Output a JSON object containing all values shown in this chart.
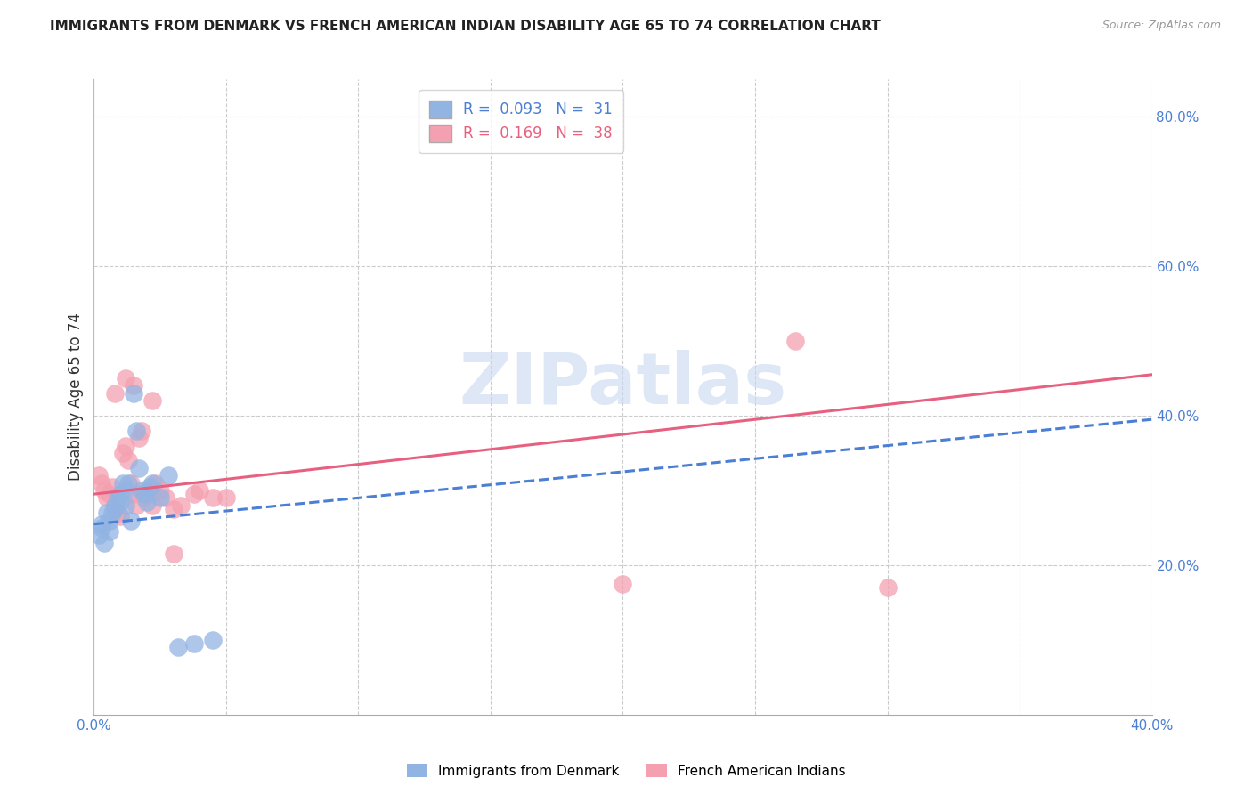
{
  "title": "IMMIGRANTS FROM DENMARK VS FRENCH AMERICAN INDIAN DISABILITY AGE 65 TO 74 CORRELATION CHART",
  "source": "Source: ZipAtlas.com",
  "ylabel": "Disability Age 65 to 74",
  "xlim": [
    0.0,
    0.4
  ],
  "ylim": [
    0.0,
    0.85
  ],
  "xticks": [
    0.0,
    0.05,
    0.1,
    0.15,
    0.2,
    0.25,
    0.3,
    0.35,
    0.4
  ],
  "yticks_right": [
    0.2,
    0.4,
    0.6,
    0.8
  ],
  "ytick_labels_right": [
    "20.0%",
    "40.0%",
    "60.0%",
    "80.0%"
  ],
  "xtick_labels": [
    "0.0%",
    "",
    "",
    "",
    "",
    "",
    "",
    "",
    "40.0%"
  ],
  "legend_r_blue": "0.093",
  "legend_n_blue": "31",
  "legend_r_pink": "0.169",
  "legend_n_pink": "38",
  "blue_color": "#92b4e3",
  "pink_color": "#f4a0b0",
  "blue_line_color": "#4a7fd4",
  "pink_line_color": "#e86080",
  "watermark": "ZIPatlas",
  "watermark_color": "#c8d8f0",
  "blue_scatter_x": [
    0.002,
    0.003,
    0.003,
    0.004,
    0.005,
    0.006,
    0.006,
    0.007,
    0.008,
    0.008,
    0.009,
    0.01,
    0.01,
    0.011,
    0.012,
    0.012,
    0.013,
    0.014,
    0.015,
    0.016,
    0.017,
    0.018,
    0.019,
    0.02,
    0.021,
    0.022,
    0.025,
    0.028,
    0.032,
    0.038,
    0.045
  ],
  "blue_scatter_y": [
    0.24,
    0.25,
    0.255,
    0.23,
    0.27,
    0.26,
    0.245,
    0.27,
    0.28,
    0.275,
    0.29,
    0.285,
    0.295,
    0.31,
    0.28,
    0.3,
    0.31,
    0.26,
    0.43,
    0.38,
    0.33,
    0.3,
    0.295,
    0.285,
    0.305,
    0.31,
    0.29,
    0.32,
    0.09,
    0.095,
    0.1
  ],
  "pink_scatter_x": [
    0.002,
    0.003,
    0.004,
    0.005,
    0.006,
    0.007,
    0.008,
    0.009,
    0.01,
    0.011,
    0.012,
    0.013,
    0.014,
    0.015,
    0.016,
    0.017,
    0.018,
    0.019,
    0.02,
    0.021,
    0.022,
    0.023,
    0.025,
    0.027,
    0.03,
    0.033,
    0.038,
    0.04,
    0.045,
    0.05,
    0.015,
    0.008,
    0.012,
    0.022,
    0.2,
    0.265,
    0.3,
    0.03
  ],
  "pink_scatter_y": [
    0.32,
    0.31,
    0.3,
    0.29,
    0.295,
    0.305,
    0.28,
    0.27,
    0.265,
    0.35,
    0.36,
    0.34,
    0.31,
    0.295,
    0.28,
    0.37,
    0.38,
    0.29,
    0.3,
    0.295,
    0.28,
    0.31,
    0.3,
    0.29,
    0.275,
    0.28,
    0.295,
    0.3,
    0.29,
    0.29,
    0.44,
    0.43,
    0.45,
    0.42,
    0.175,
    0.5,
    0.17,
    0.215
  ],
  "blue_trend_x0": 0.0,
  "blue_trend_y0": 0.255,
  "blue_trend_x1": 0.4,
  "blue_trend_y1": 0.395,
  "pink_trend_x0": 0.0,
  "pink_trend_y0": 0.295,
  "pink_trend_x1": 0.4,
  "pink_trend_y1": 0.455
}
